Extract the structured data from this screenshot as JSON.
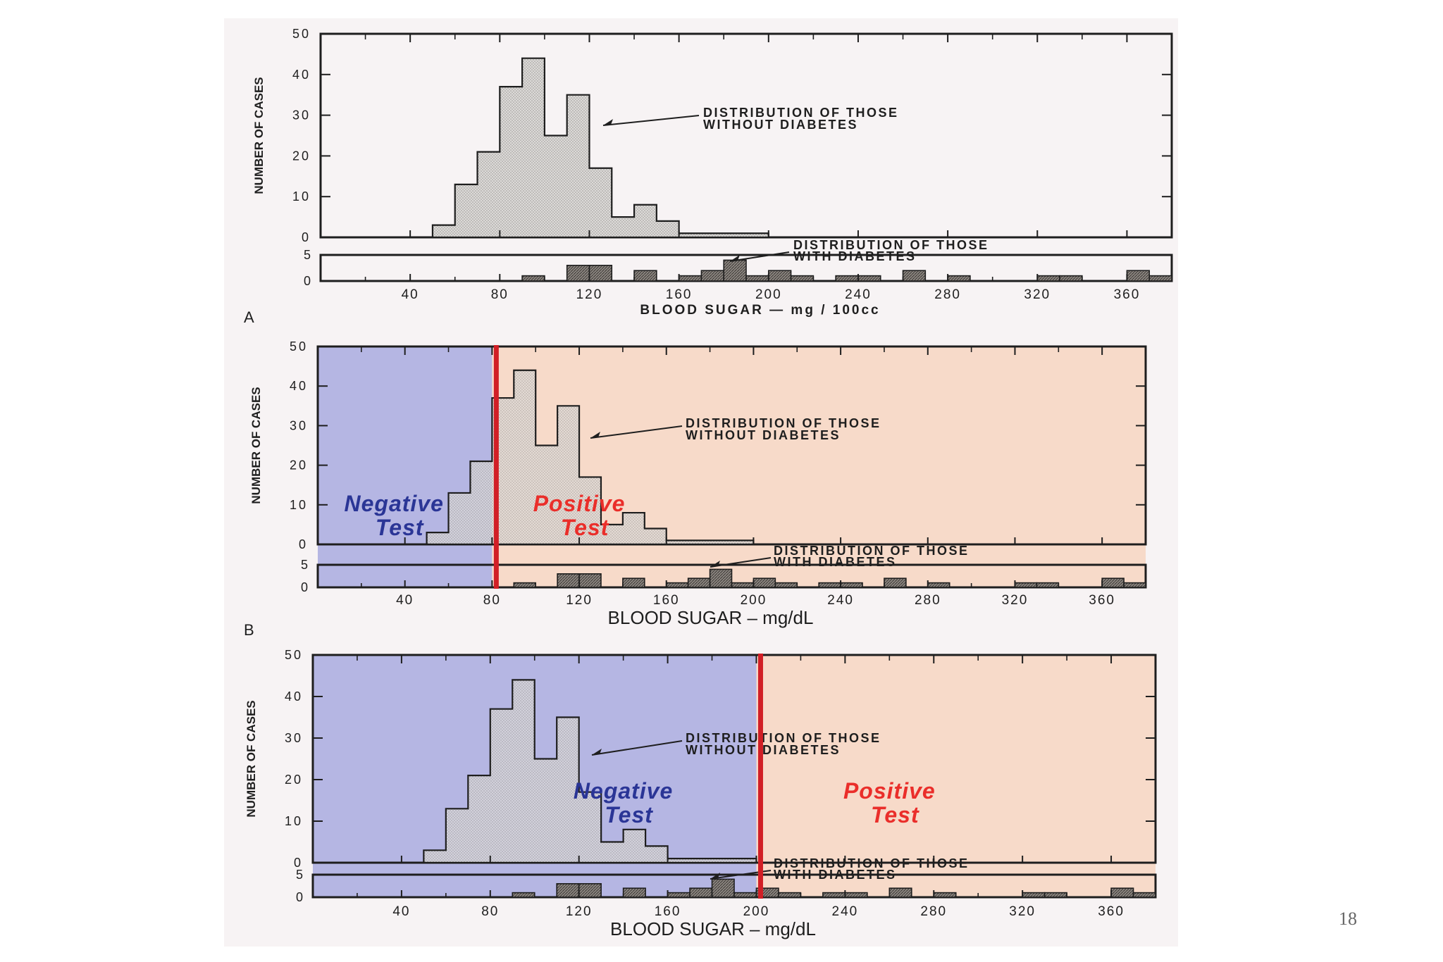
{
  "slide_number": "18",
  "colors": {
    "paper": "#f7f3f4",
    "ink": "#1e1e1e",
    "hist_fill": "#dcdad8",
    "diab_fill": "#8c8681",
    "negative_shade": "#8d8fd8",
    "positive_shade": "#f7c4a6",
    "cutoff_line": "#d11f26",
    "negative_text": "#2a3596",
    "positive_text": "#ea2e2a"
  },
  "chart_data": [
    {
      "type": "bar",
      "panel_label": "",
      "histogram": "stepped",
      "ylabel": "NUMBER OF CASES",
      "xlabel": "BLOOD SUGAR — mg / 100cc",
      "xlim": [
        0,
        380
      ],
      "x_ticks": [
        "40",
        "80",
        "120",
        "160",
        "200",
        "240",
        "280",
        "320",
        "360"
      ],
      "without_diabetes": {
        "label_line1": "DISTRIBUTION  OF  THOSE",
        "label_line2": "WITHOUT  DIABETES",
        "ylim": [
          0,
          50
        ],
        "y_ticks": [
          "0",
          "10",
          "20",
          "30",
          "40",
          "50"
        ],
        "bins": [
          50,
          60,
          70,
          80,
          90,
          100,
          110,
          120,
          130,
          140,
          150,
          160,
          170,
          180,
          190,
          200
        ],
        "counts": [
          3,
          13,
          21,
          37,
          44,
          25,
          35,
          17,
          5,
          8,
          4,
          1,
          1,
          1,
          1
        ]
      },
      "with_diabetes": {
        "label_line1": "DISTRIBUTION  OF  THOSE",
        "label_line2": "WITH  DIABETES",
        "ylim": [
          0,
          5
        ],
        "y_ticks": [
          "0",
          "5"
        ],
        "bins": [
          80,
          90,
          100,
          110,
          120,
          130,
          140,
          150,
          160,
          170,
          180,
          190,
          200,
          210,
          220,
          230,
          240,
          250,
          260,
          270,
          280,
          290,
          320,
          330,
          340,
          360,
          370,
          380
        ],
        "counts": [
          0,
          1,
          0,
          3,
          3,
          0,
          2,
          0,
          1,
          2,
          4,
          1,
          2,
          1,
          0,
          1,
          1,
          0,
          2,
          0,
          1,
          0,
          1,
          1,
          0,
          2,
          1
        ]
      },
      "cutoff": null,
      "regions": []
    },
    {
      "type": "bar",
      "panel_label": "A",
      "histogram": "stepped",
      "ylabel": "NUMBER OF CASES",
      "xlabel": "BLOOD SUGAR – mg/dL",
      "xlim": [
        0,
        380
      ],
      "x_ticks": [
        "40",
        "80",
        "120",
        "160",
        "200",
        "240",
        "280",
        "320",
        "360"
      ],
      "without_diabetes": {
        "label_line1": "DISTRIBUTION  OF  THOSE",
        "label_line2": "WITHOUT  DIABETES",
        "ylim": [
          0,
          50
        ],
        "y_ticks": [
          "0",
          "10",
          "20",
          "30",
          "40",
          "50"
        ],
        "bins": [
          50,
          60,
          70,
          80,
          90,
          100,
          110,
          120,
          130,
          140,
          150,
          160,
          170,
          180,
          190,
          200
        ],
        "counts": [
          3,
          13,
          21,
          37,
          44,
          25,
          35,
          17,
          5,
          8,
          4,
          1,
          1,
          1,
          1
        ]
      },
      "with_diabetes": {
        "label_line1": "DISTRIBUTION  OF  THOSE",
        "label_line2": "WITH  DIABETES",
        "ylim": [
          0,
          5
        ],
        "y_ticks": [
          "0",
          "5"
        ],
        "bins": [
          80,
          90,
          100,
          110,
          120,
          130,
          140,
          150,
          160,
          170,
          180,
          190,
          200,
          210,
          220,
          230,
          240,
          250,
          260,
          270,
          280,
          290,
          320,
          330,
          340,
          360,
          370,
          380
        ],
        "counts": [
          0,
          1,
          0,
          3,
          3,
          0,
          2,
          0,
          1,
          2,
          4,
          1,
          2,
          1,
          0,
          1,
          1,
          0,
          2,
          0,
          1,
          0,
          1,
          1,
          0,
          2,
          1
        ]
      },
      "cutoff": 80,
      "regions": [
        {
          "kind": "negative",
          "line1": "Negative",
          "line2": "Test",
          "x_from": 0,
          "x_to": 80
        },
        {
          "kind": "positive",
          "line1": "Positive",
          "line2": "Test",
          "x_from": 80,
          "x_to": 380
        }
      ]
    },
    {
      "type": "bar",
      "panel_label": "B",
      "histogram": "stepped",
      "ylabel": "NUMBER OF CASES",
      "xlabel": "BLOOD SUGAR – mg/dL",
      "xlim": [
        0,
        380
      ],
      "x_ticks": [
        "40",
        "80",
        "120",
        "160",
        "200",
        "240",
        "280",
        "320",
        "360"
      ],
      "without_diabetes": {
        "label_line1": "DISTRIBUTION  OF  THOSE",
        "label_line2": "WITHOUT  DIABETES",
        "ylim": [
          0,
          50
        ],
        "y_ticks": [
          "0",
          "10",
          "20",
          "30",
          "40",
          "50"
        ],
        "bins": [
          50,
          60,
          70,
          80,
          90,
          100,
          110,
          120,
          130,
          140,
          150,
          160,
          170,
          180,
          190,
          200
        ],
        "counts": [
          3,
          13,
          21,
          37,
          44,
          25,
          35,
          17,
          5,
          8,
          4,
          1,
          1,
          1,
          1
        ]
      },
      "with_diabetes": {
        "label_line1": "DISTRIBUTION  OF  THOSE",
        "label_line2": "WITH  DIABETES",
        "ylim": [
          0,
          5
        ],
        "y_ticks": [
          "0",
          "5"
        ],
        "bins": [
          80,
          90,
          100,
          110,
          120,
          130,
          140,
          150,
          160,
          170,
          180,
          190,
          200,
          210,
          220,
          230,
          240,
          250,
          260,
          270,
          280,
          290,
          320,
          330,
          340,
          360,
          370,
          380
        ],
        "counts": [
          0,
          1,
          0,
          3,
          3,
          0,
          2,
          0,
          1,
          2,
          4,
          1,
          2,
          1,
          0,
          1,
          1,
          0,
          2,
          0,
          1,
          0,
          1,
          1,
          0,
          2,
          1
        ]
      },
      "cutoff": 200,
      "regions": [
        {
          "kind": "negative",
          "line1": "Negative",
          "line2": "Test",
          "x_from": 0,
          "x_to": 200
        },
        {
          "kind": "positive",
          "line1": "Positive",
          "line2": "Test",
          "x_from": 200,
          "x_to": 380
        }
      ]
    }
  ]
}
